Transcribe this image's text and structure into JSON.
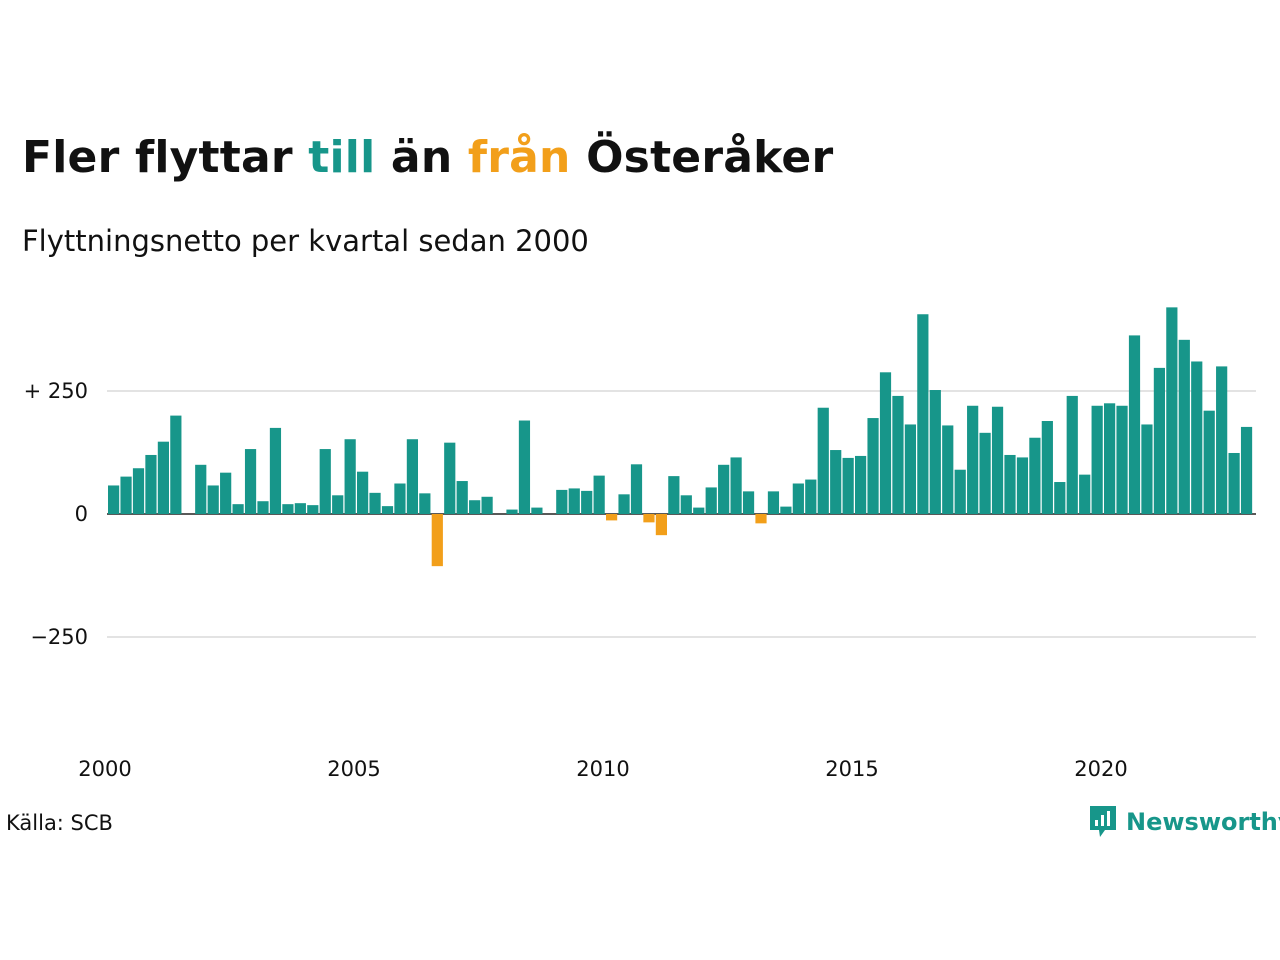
{
  "header": {
    "title_part1": "Fler flyttar",
    "title_in": "till",
    "title_part2": "än",
    "title_out": "från",
    "title_part3": "Österåker",
    "subtitle": "Flyttningsnetto per kvartal sedan 2000"
  },
  "footer": {
    "source": "Källa: SCB",
    "brand": "Newsworthy"
  },
  "colors": {
    "positive": "#17968a",
    "negative": "#f29f1a",
    "grid": "#e3e3e3",
    "axis": "#222222"
  },
  "chart_data": {
    "type": "bar",
    "title": "Fler flyttar till än från Österåker",
    "subtitle": "Flyttningsnetto per kvartal sedan 2000",
    "x_start": 2000,
    "periods_per_year": 4,
    "x_ticks": [
      "2000",
      "2005",
      "2010",
      "2015",
      "2020"
    ],
    "y_ticks": [
      {
        "value": 250,
        "label": "+ 250"
      },
      {
        "value": 0,
        "label": "0"
      },
      {
        "value": -250,
        "label": "−250"
      }
    ],
    "ylim": [
      -450,
      450
    ],
    "grid": true,
    "values": [
      58,
      76,
      93,
      120,
      147,
      200,
      0,
      100,
      58,
      84,
      20,
      132,
      26,
      175,
      20,
      22,
      18,
      132,
      38,
      152,
      86,
      43,
      16,
      62,
      152,
      42,
      -106,
      145,
      67,
      28,
      35,
      0,
      9,
      190,
      13,
      0,
      49,
      52,
      47,
      78,
      -13,
      40,
      101,
      -17,
      -43,
      77,
      38,
      13,
      54,
      100,
      115,
      46,
      -19,
      46,
      15,
      62,
      70,
      216,
      130,
      114,
      118,
      195,
      288,
      240,
      182,
      406,
      252,
      180,
      90,
      220,
      165,
      218,
      120,
      115,
      155,
      189,
      65,
      240,
      80,
      220,
      225,
      220,
      363,
      182,
      297,
      420,
      354,
      310,
      210,
      300,
      124,
      177
    ]
  }
}
